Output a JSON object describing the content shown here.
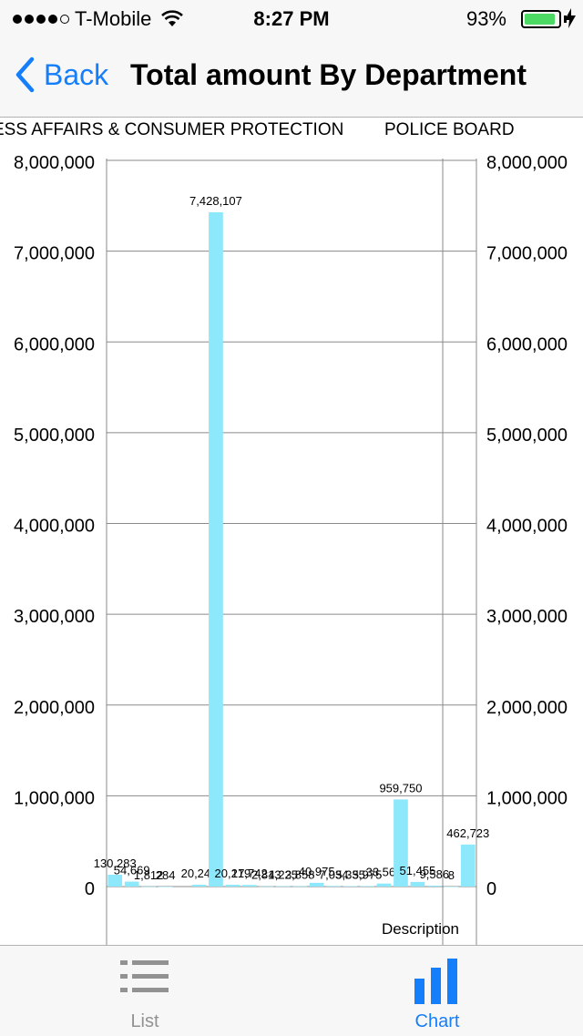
{
  "status_bar": {
    "carrier": "T-Mobile",
    "time": "8:27 PM",
    "battery_percent": "93%",
    "battery_level": 0.93,
    "signal_bars_filled": 4,
    "signal_bars_total": 5
  },
  "nav": {
    "back_label": "Back",
    "title": "Total amount By Department"
  },
  "chart_data": {
    "type": "bar",
    "color": "#8ee8fb",
    "category_labels_visible": [
      "ESS AFFAIRS & CONSUMER PROTECTION",
      "POLICE BOARD"
    ],
    "xlabel": "Description",
    "ylim": [
      0,
      8000000
    ],
    "yticks": [
      "0",
      "1,000,000",
      "2,000,000",
      "3,000,000",
      "4,000,000",
      "5,000,000",
      "6,000,000",
      "7,000,000",
      "8,000,000"
    ],
    "grid": true,
    "values": [
      130283,
      54669,
      1812,
      284,
      0,
      20248,
      7428107,
      20219,
      17742,
      2813,
      4225,
      3858,
      40975,
      7034,
      5335,
      5975,
      33565,
      959750,
      51455,
      9586,
      8,
      462723
    ],
    "value_labels": [
      "130,283",
      "54,669",
      "1,812",
      "284",
      "",
      "20,248",
      "7,428,107",
      "20,219",
      "17,742",
      "2,813",
      "4,225",
      "3,858",
      "40,975",
      "7,034",
      "5,335",
      "5,975",
      "33,565",
      "959,750",
      "51,455",
      "9,586",
      "8",
      "462,723"
    ]
  },
  "tabs": [
    {
      "label": "List",
      "icon": "list-icon",
      "selected": false
    },
    {
      "label": "Chart",
      "icon": "bar-chart-icon",
      "selected": true
    }
  ],
  "colors": {
    "accent": "#157efb",
    "bar_background": "#f7f7f7",
    "battery_green": "#4cd964",
    "inactive_tab": "#929292"
  }
}
